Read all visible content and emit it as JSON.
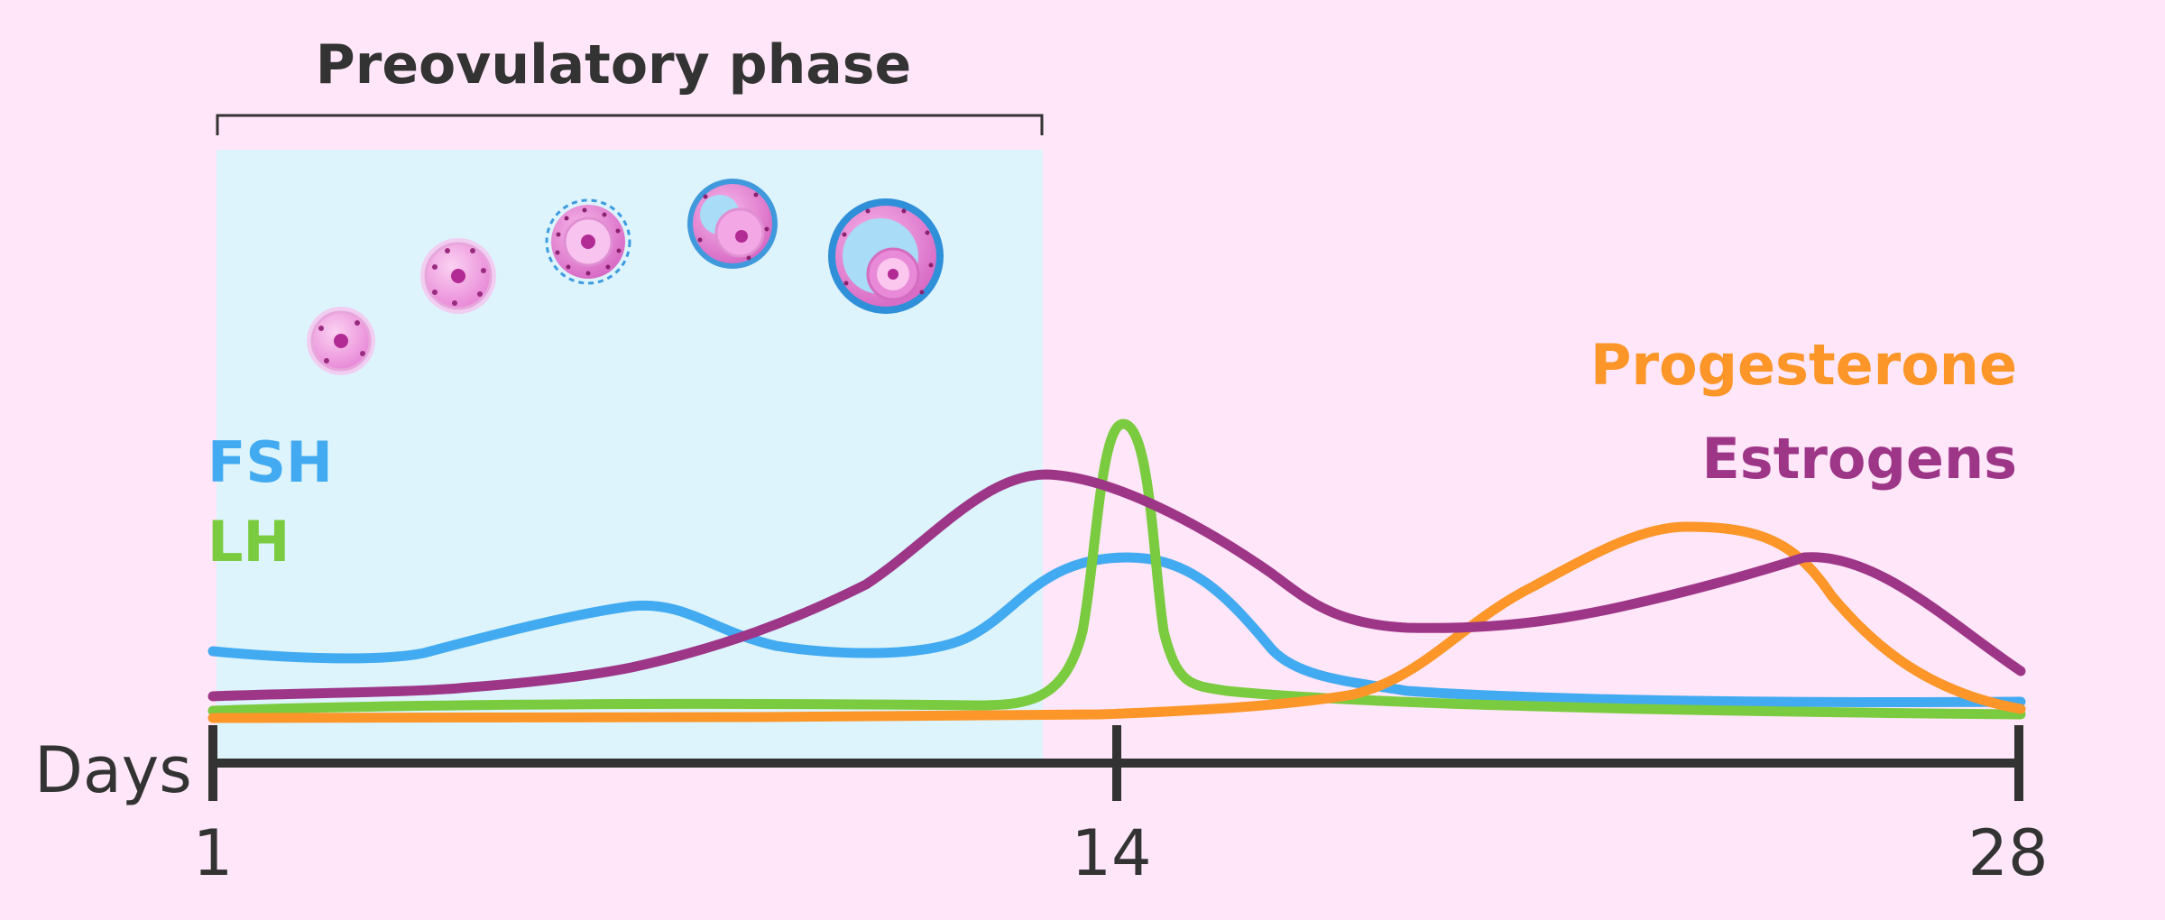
{
  "phase": {
    "label": "Preovulatory phase"
  },
  "legend_left": [
    {
      "label": "FSH",
      "color": "#42aaf0"
    },
    {
      "label": "LH",
      "color": "#7acb3f"
    }
  ],
  "legend_right": [
    {
      "label": "Progesterone",
      "color": "#fd9628"
    },
    {
      "label": "Estrogens",
      "color": "#9e3688"
    }
  ],
  "axis": {
    "label": "Days",
    "ticks": [
      "1",
      "14",
      "28"
    ]
  },
  "follicles": [
    {
      "stage": "primordial-follicle-icon"
    },
    {
      "stage": "primary-follicle-icon"
    },
    {
      "stage": "secondary-follicle-icon"
    },
    {
      "stage": "early-antral-follicle-icon"
    },
    {
      "stage": "mature-follicle-icon"
    }
  ],
  "colors": {
    "background": "#ffe6f8",
    "phase_shade": "#ddf4fd",
    "axis": "#333333",
    "fsh": "#42aaf0",
    "lh": "#7acb3f",
    "progesterone": "#fd9628",
    "estrogens": "#9e3688"
  }
}
